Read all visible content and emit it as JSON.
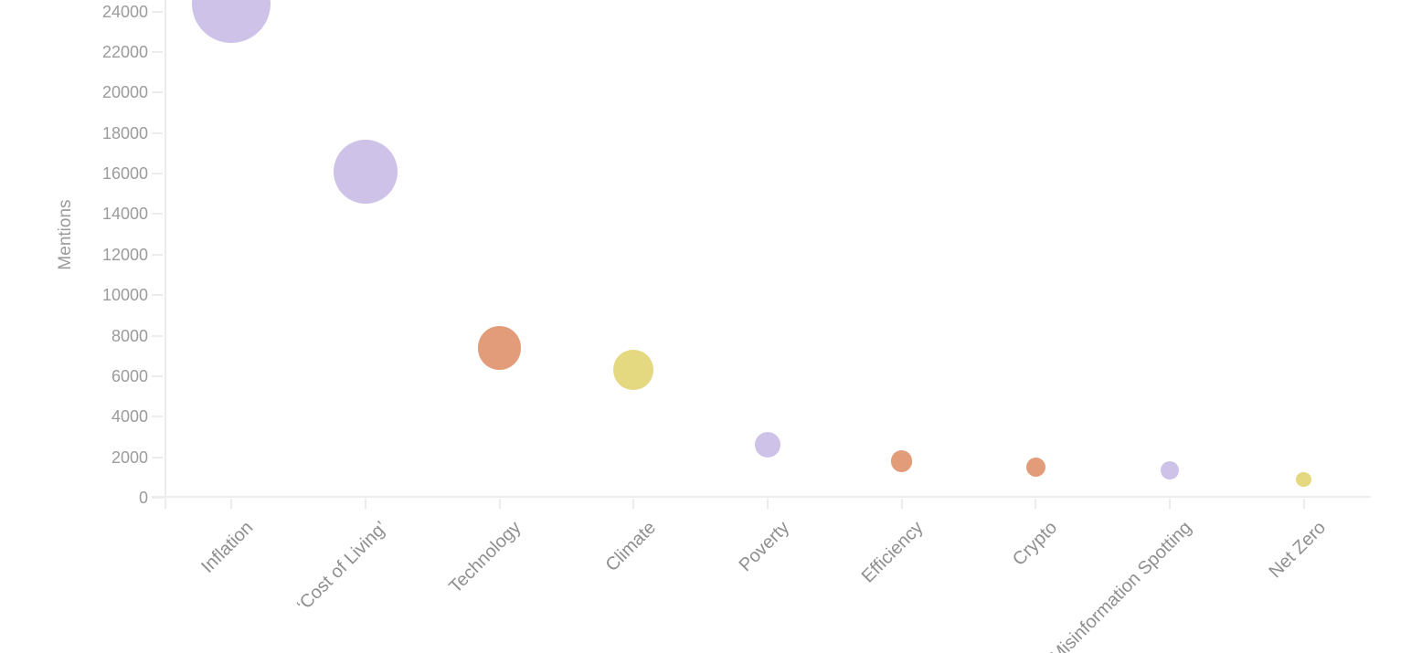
{
  "chart_data": {
    "type": "scatter",
    "variant": "bubble",
    "title": "",
    "xlabel": "",
    "ylabel": "Mentions",
    "categories": [
      "Inflation",
      "‘Cost of Living’",
      "Technology",
      "Climate",
      "Poverty",
      "Efficiency",
      "Crypto",
      "Misinformation Spotting",
      "Net Zero"
    ],
    "values": [
      24400,
      16100,
      7400,
      6300,
      2600,
      1800,
      1500,
      1350,
      900
    ],
    "point_colors": [
      "#cfc2e9",
      "#cfc2e9",
      "#e39c79",
      "#e4d880",
      "#cfc2e9",
      "#e39c79",
      "#e39c79",
      "#cfc2e9",
      "#e4d880"
    ],
    "palette": {
      "purple": "#cfc2e9",
      "salmon": "#e39c79",
      "yellow": "#e4d880"
    },
    "y_ticks": [
      0,
      2000,
      4000,
      6000,
      8000,
      10000,
      12000,
      14000,
      16000,
      18000,
      20000,
      22000,
      24000
    ],
    "ylim_visible": [
      0,
      24600
    ],
    "grid": false,
    "legend": false,
    "x_tick_rotation_deg": -45,
    "bubble_size_rule": "radius_px = 0.2756 * sqrt(value)",
    "colors": {
      "axis_line": "#ececec",
      "y_tick_label": "#9b9b9b",
      "x_tick_label": "#8f8f8f",
      "axis_title": "#9b9b9b"
    },
    "visible_crop_note": "chart cropped at top (Inflation bubble clipped) and bottom (start of Misinformation Spotting label clipped)"
  }
}
